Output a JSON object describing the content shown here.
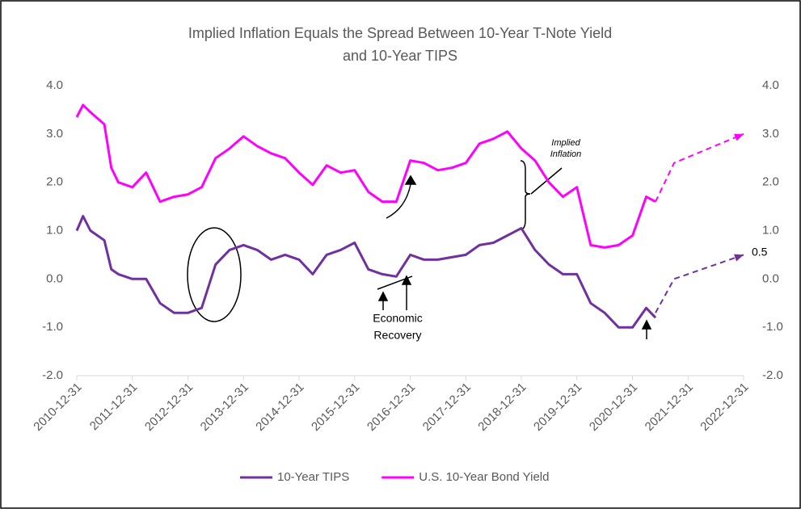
{
  "chart_data": {
    "type": "line",
    "title": [
      "Implied Inflation Equals the Spread Between 10-Year T-Note Yield",
      "and 10-Year TIPS"
    ],
    "xlim": [
      "2010-12-31",
      "2022-12-31"
    ],
    "xticks": [
      "2010-12-31",
      "2011-12-31",
      "2012-12-31",
      "2013-12-31",
      "2014-12-31",
      "2015-12-31",
      "2016-12-31",
      "2017-12-31",
      "2018-12-31",
      "2019-12-31",
      "2020-12-31",
      "2021-12-31",
      "2022-12-31"
    ],
    "ylim": [
      -2,
      4
    ],
    "yticks": [
      {
        "value": -2,
        "label": "-2.0"
      },
      {
        "value": -1,
        "label": "-1.0"
      },
      {
        "value": 0,
        "label": "0.0"
      },
      {
        "value": 1,
        "label": "1.0"
      },
      {
        "value": 2,
        "label": "2.0"
      },
      {
        "value": 3,
        "label": "3.0"
      },
      {
        "value": 4,
        "label": "4.0"
      }
    ],
    "y2lim": [
      -2,
      4
    ],
    "y2ticks": [
      {
        "value": -2,
        "label": "-2.0"
      },
      {
        "value": -1,
        "label": "-1.0"
      },
      {
        "value": 0,
        "label": "0.0"
      },
      {
        "value": 1,
        "label": "1.0"
      },
      {
        "value": 2,
        "label": "2.0"
      },
      {
        "value": 3,
        "label": "3.0"
      },
      {
        "value": 4,
        "label": "4.0"
      }
    ],
    "grid": false,
    "legend": "bottom",
    "series": [
      {
        "name": "10-Year TIPS",
        "color": "#7030a0",
        "x": [
          "2010-12-31",
          "2011-02-10",
          "2011-03-31",
          "2011-06-30",
          "2011-08-15",
          "2011-09-30",
          "2011-12-31",
          "2012-03-31",
          "2012-06-30",
          "2012-09-30",
          "2012-12-31",
          "2013-03-31",
          "2013-06-30",
          "2013-09-30",
          "2013-12-31",
          "2014-03-31",
          "2014-06-30",
          "2014-09-30",
          "2014-12-31",
          "2015-03-31",
          "2015-06-30",
          "2015-09-30",
          "2015-12-31",
          "2016-03-31",
          "2016-06-30",
          "2016-09-30",
          "2016-12-31",
          "2017-03-31",
          "2017-06-30",
          "2017-09-30",
          "2017-12-31",
          "2018-03-31",
          "2018-06-30",
          "2018-09-30",
          "2018-12-31",
          "2019-03-31",
          "2019-06-30",
          "2019-09-30",
          "2019-12-31",
          "2020-03-31",
          "2020-06-30",
          "2020-09-30",
          "2020-12-31",
          "2021-03-31",
          "2021-05-31"
        ],
        "values": [
          1.0,
          1.3,
          1.0,
          0.8,
          0.2,
          0.1,
          0.0,
          0.0,
          -0.5,
          -0.7,
          -0.7,
          -0.6,
          0.3,
          0.6,
          0.7,
          0.6,
          0.4,
          0.5,
          0.4,
          0.1,
          0.5,
          0.6,
          0.75,
          0.2,
          0.1,
          0.05,
          0.5,
          0.4,
          0.4,
          0.45,
          0.5,
          0.7,
          0.75,
          0.9,
          1.05,
          0.6,
          0.3,
          0.1,
          0.1,
          -0.5,
          -0.7,
          -1.0,
          -1.0,
          -0.6,
          -0.8
        ]
      },
      {
        "name": "U.S. 10-Year Bond Yield",
        "color": "#ff00ff",
        "x": [
          "2010-12-31",
          "2011-02-10",
          "2011-03-31",
          "2011-06-30",
          "2011-08-15",
          "2011-09-30",
          "2011-12-31",
          "2012-03-31",
          "2012-06-30",
          "2012-09-30",
          "2012-12-31",
          "2013-03-31",
          "2013-06-30",
          "2013-09-30",
          "2013-12-31",
          "2014-03-31",
          "2014-06-30",
          "2014-09-30",
          "2014-12-31",
          "2015-03-31",
          "2015-06-30",
          "2015-09-30",
          "2015-12-31",
          "2016-03-31",
          "2016-06-30",
          "2016-09-30",
          "2016-12-31",
          "2017-03-31",
          "2017-06-30",
          "2017-09-30",
          "2017-12-31",
          "2018-03-31",
          "2018-06-30",
          "2018-09-30",
          "2018-12-31",
          "2019-03-31",
          "2019-06-30",
          "2019-09-30",
          "2019-12-31",
          "2020-03-31",
          "2020-06-30",
          "2020-09-30",
          "2020-12-31",
          "2021-03-31",
          "2021-05-31"
        ],
        "values": [
          3.35,
          3.6,
          3.45,
          3.2,
          2.3,
          2.0,
          1.9,
          2.2,
          1.6,
          1.7,
          1.75,
          1.9,
          2.5,
          2.7,
          2.95,
          2.75,
          2.6,
          2.5,
          2.2,
          1.95,
          2.35,
          2.2,
          2.25,
          1.8,
          1.6,
          1.6,
          2.45,
          2.4,
          2.25,
          2.3,
          2.4,
          2.8,
          2.9,
          3.05,
          2.7,
          2.45,
          2.0,
          1.7,
          1.9,
          0.7,
          0.65,
          0.7,
          0.9,
          1.7,
          1.6
        ]
      },
      {
        "color": "#7030a0",
        "dashed": true,
        "x": [
          "2021-05-31",
          "2021-09-30",
          "2022-12-31"
        ],
        "values": [
          -0.7,
          0.0,
          0.5
        ]
      },
      {
        "color": "#ff00ff",
        "dashed": true,
        "x": [
          "2021-05-31",
          "2021-09-30",
          "2022-12-31"
        ],
        "values": [
          1.6,
          2.4,
          3.0
        ]
      }
    ],
    "annotations": [
      {
        "text": [
          "Implied",
          "Inflation"
        ]
      },
      {
        "text": [
          "Economic",
          "Recovery"
        ]
      },
      {
        "text": "0.5"
      }
    ]
  }
}
